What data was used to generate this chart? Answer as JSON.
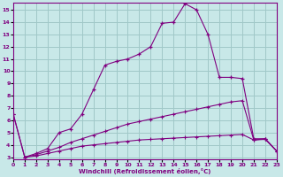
{
  "xlabel": "Windchill (Refroidissement éolien,°C)",
  "bg_color": "#c8e8e8",
  "grid_color": "#a0c8c8",
  "line_color": "#800080",
  "xlim": [
    0,
    23
  ],
  "ylim": [
    2.8,
    15.6
  ],
  "xticks": [
    0,
    1,
    2,
    3,
    4,
    5,
    6,
    7,
    8,
    9,
    10,
    11,
    12,
    13,
    14,
    15,
    16,
    17,
    18,
    19,
    20,
    21,
    22,
    23
  ],
  "yticks": [
    3,
    4,
    5,
    6,
    7,
    8,
    9,
    10,
    11,
    12,
    13,
    14,
    15
  ],
  "curve1_x": [
    0,
    1,
    2,
    3,
    4,
    5,
    6,
    7,
    8,
    9,
    10,
    11,
    12,
    13,
    14,
    15,
    16,
    17,
    18,
    19,
    20,
    21,
    22,
    23
  ],
  "curve1_y": [
    6.5,
    3.0,
    3.1,
    3.3,
    3.5,
    3.7,
    3.9,
    4.0,
    4.1,
    4.2,
    4.3,
    4.4,
    4.45,
    4.5,
    4.55,
    4.6,
    4.65,
    4.7,
    4.75,
    4.8,
    4.85,
    4.4,
    4.45,
    3.5
  ],
  "curve2_x": [
    0,
    1,
    2,
    3,
    4,
    5,
    6,
    7,
    8,
    9,
    10,
    11,
    12,
    13,
    14,
    15,
    16,
    17,
    18,
    19,
    20,
    21,
    22,
    23
  ],
  "curve2_y": [
    6.5,
    3.0,
    3.2,
    3.5,
    3.8,
    4.2,
    4.5,
    4.8,
    5.1,
    5.4,
    5.7,
    5.9,
    6.1,
    6.3,
    6.5,
    6.7,
    6.9,
    7.1,
    7.3,
    7.5,
    7.6,
    4.4,
    4.5,
    3.5
  ],
  "curve3_x": [
    1,
    2,
    3,
    4,
    5,
    6,
    7,
    8,
    9,
    10,
    11,
    12,
    13,
    14,
    15,
    16,
    17,
    18,
    19,
    20,
    21,
    22,
    23
  ],
  "curve3_y": [
    3.0,
    3.3,
    3.7,
    5.0,
    5.3,
    6.5,
    8.5,
    10.5,
    10.8,
    11.0,
    11.4,
    12.0,
    13.9,
    14.0,
    15.5,
    15.0,
    13.0,
    9.5,
    9.5,
    9.4,
    4.5,
    4.5,
    3.5
  ]
}
